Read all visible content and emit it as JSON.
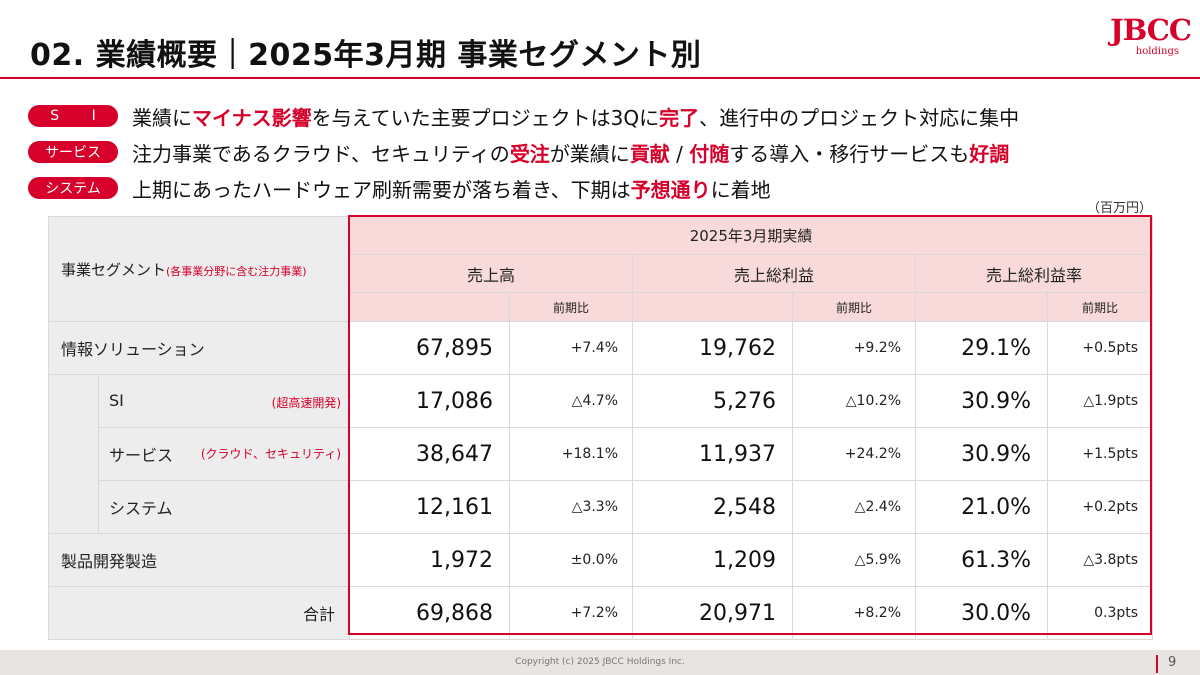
{
  "header": {
    "title": "02. 業績概要｜2025年3月期 事業セグメント別",
    "logo_main": "JBCC",
    "logo_sub": "holdings"
  },
  "summary": [
    {
      "badge": "S I",
      "parts": [
        {
          "t": "業績に",
          "hl": false
        },
        {
          "t": "マイナス影響",
          "hl": true
        },
        {
          "t": "を与えていた主要プロジェクトは3Qに",
          "hl": false
        },
        {
          "t": "完了",
          "hl": true
        },
        {
          "t": "、進行中のプロジェクト対応に集中",
          "hl": false
        }
      ]
    },
    {
      "badge": "サービス",
      "parts": [
        {
          "t": "注力事業であるクラウド、セキュリティの",
          "hl": false
        },
        {
          "t": "受注",
          "hl": true
        },
        {
          "t": "が業績に",
          "hl": false
        },
        {
          "t": "貢献",
          "hl": true
        },
        {
          "t": " / ",
          "hl": false
        },
        {
          "t": "付随",
          "hl": true
        },
        {
          "t": "する導入・移行サービスも",
          "hl": false
        },
        {
          "t": "好調",
          "hl": true
        }
      ]
    },
    {
      "badge": "システム",
      "parts": [
        {
          "t": "上期にあったハードウェア刷新需要が落ち着き、下期は",
          "hl": false
        },
        {
          "t": "予想通り",
          "hl": true
        },
        {
          "t": "に着地",
          "hl": false
        }
      ]
    }
  ],
  "table": {
    "unit": "（百万円）",
    "segment_header": "事業セグメント",
    "segment_header_note": "(各事業分野に含む注力事業)",
    "period_header": "2025年3月期実績",
    "col_sales": "売上高",
    "col_gross_profit": "売上総利益",
    "col_margin": "売上総利益率",
    "col_yoy": "前期比",
    "rows": [
      {
        "label": "情報ソリューション",
        "note": "",
        "sales": "67,895",
        "sales_yoy": "+7.4%",
        "gp": "19,762",
        "gp_yoy": "+9.2%",
        "margin": "29.1%",
        "margin_yoy": "+0.5pts"
      },
      {
        "label": "SI",
        "note": "(超高速開発)",
        "sales": "17,086",
        "sales_yoy": "△4.7%",
        "gp": "5,276",
        "gp_yoy": "△10.2%",
        "margin": "30.9%",
        "margin_yoy": "△1.9pts"
      },
      {
        "label": "サービス",
        "note": "(クラウド、セキュリティ)",
        "sales": "38,647",
        "sales_yoy": "+18.1%",
        "gp": "11,937",
        "gp_yoy": "+24.2%",
        "margin": "30.9%",
        "margin_yoy": "+1.5pts"
      },
      {
        "label": "システム",
        "note": "",
        "sales": "12,161",
        "sales_yoy": "△3.3%",
        "gp": "2,548",
        "gp_yoy": "△2.4%",
        "margin": "21.0%",
        "margin_yoy": "+0.2pts"
      },
      {
        "label": "製品開発製造",
        "note": "",
        "sales": "1,972",
        "sales_yoy": "±0.0%",
        "gp": "1,209",
        "gp_yoy": "△5.9%",
        "margin": "61.3%",
        "margin_yoy": "△3.8pts"
      },
      {
        "label": "合計",
        "note": "",
        "sales": "69,868",
        "sales_yoy": "+7.2%",
        "gp": "20,971",
        "gp_yoy": "+8.2%",
        "margin": "30.0%",
        "margin_yoy": "0.3pts"
      }
    ]
  },
  "footer": {
    "copyright": "Copyright (c) 2025 JBCC Holdings Inc.",
    "page": "9"
  },
  "colors": {
    "accent": "#d6002a",
    "header_fill": "#f8dada",
    "label_fill": "#ededed"
  }
}
